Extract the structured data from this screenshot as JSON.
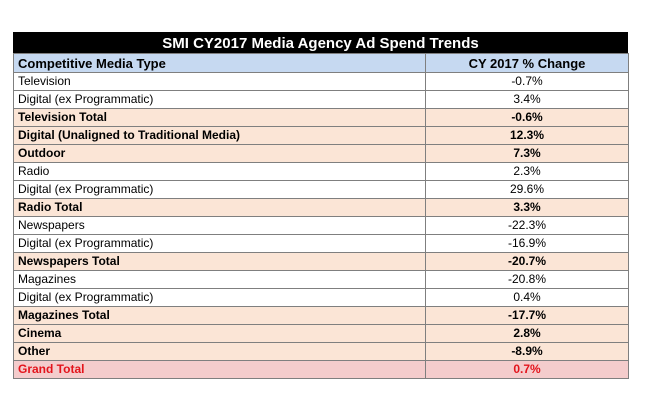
{
  "title": "SMI CY2017 Media Agency Ad Spend Trends",
  "columns": {
    "type": "Competitive Media Type",
    "change": "CY 2017 % Change"
  },
  "rows": [
    {
      "label": "Television",
      "value": "-0.7%",
      "kind": "detail"
    },
    {
      "label": "Digital (ex Programmatic)",
      "value": "3.4%",
      "kind": "detail"
    },
    {
      "label": "Television Total",
      "value": "-0.6%",
      "kind": "total"
    },
    {
      "label": "Digital (Unaligned to Traditional Media)",
      "value": "12.3%",
      "kind": "total"
    },
    {
      "label": "Outdoor",
      "value": "7.3%",
      "kind": "total"
    },
    {
      "label": "Radio",
      "value": "2.3%",
      "kind": "detail"
    },
    {
      "label": "Digital (ex Programmatic)",
      "value": "29.6%",
      "kind": "detail"
    },
    {
      "label": "Radio Total",
      "value": "3.3%",
      "kind": "total"
    },
    {
      "label": "Newspapers",
      "value": "-22.3%",
      "kind": "detail"
    },
    {
      "label": "Digital (ex Programmatic)",
      "value": "-16.9%",
      "kind": "detail"
    },
    {
      "label": "Newspapers Total",
      "value": "-20.7%",
      "kind": "total"
    },
    {
      "label": "Magazines",
      "value": "-20.8%",
      "kind": "detail"
    },
    {
      "label": "Digital (ex Programmatic)",
      "value": "0.4%",
      "kind": "detail"
    },
    {
      "label": "Magazines Total",
      "value": "-17.7%",
      "kind": "total"
    },
    {
      "label": "Cinema",
      "value": "2.8%",
      "kind": "total"
    },
    {
      "label": "Other",
      "value": "-8.9%",
      "kind": "total"
    },
    {
      "label": "Grand Total",
      "value": "0.7%",
      "kind": "grand"
    }
  ],
  "colors": {
    "title_bg": "#000000",
    "header_bg": "#c6d9f1",
    "total_bg": "#fbe5d6",
    "grand_bg": "#f4cccc",
    "grand_text": "#e3141c"
  }
}
